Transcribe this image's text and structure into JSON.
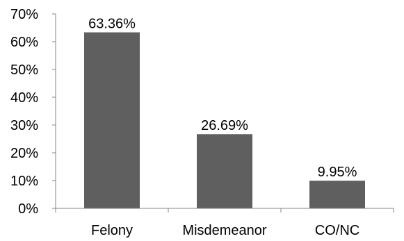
{
  "chart_data": {
    "type": "bar",
    "categories": [
      "Felony",
      "Misdemeanor",
      "CO/NC"
    ],
    "values": [
      63.36,
      26.69,
      9.95
    ],
    "data_labels": [
      "63.36%",
      "26.69%",
      "9.95%"
    ],
    "y_ticks": [
      0,
      10,
      20,
      30,
      40,
      50,
      60,
      70
    ],
    "y_tick_labels": [
      "0%",
      "10%",
      "20%",
      "30%",
      "40%",
      "50%",
      "60%",
      "70%"
    ],
    "ylim": [
      0,
      70
    ],
    "grid": false,
    "legend": "none",
    "bar_color": "#5f5f5f",
    "axis_color": "#868686"
  }
}
